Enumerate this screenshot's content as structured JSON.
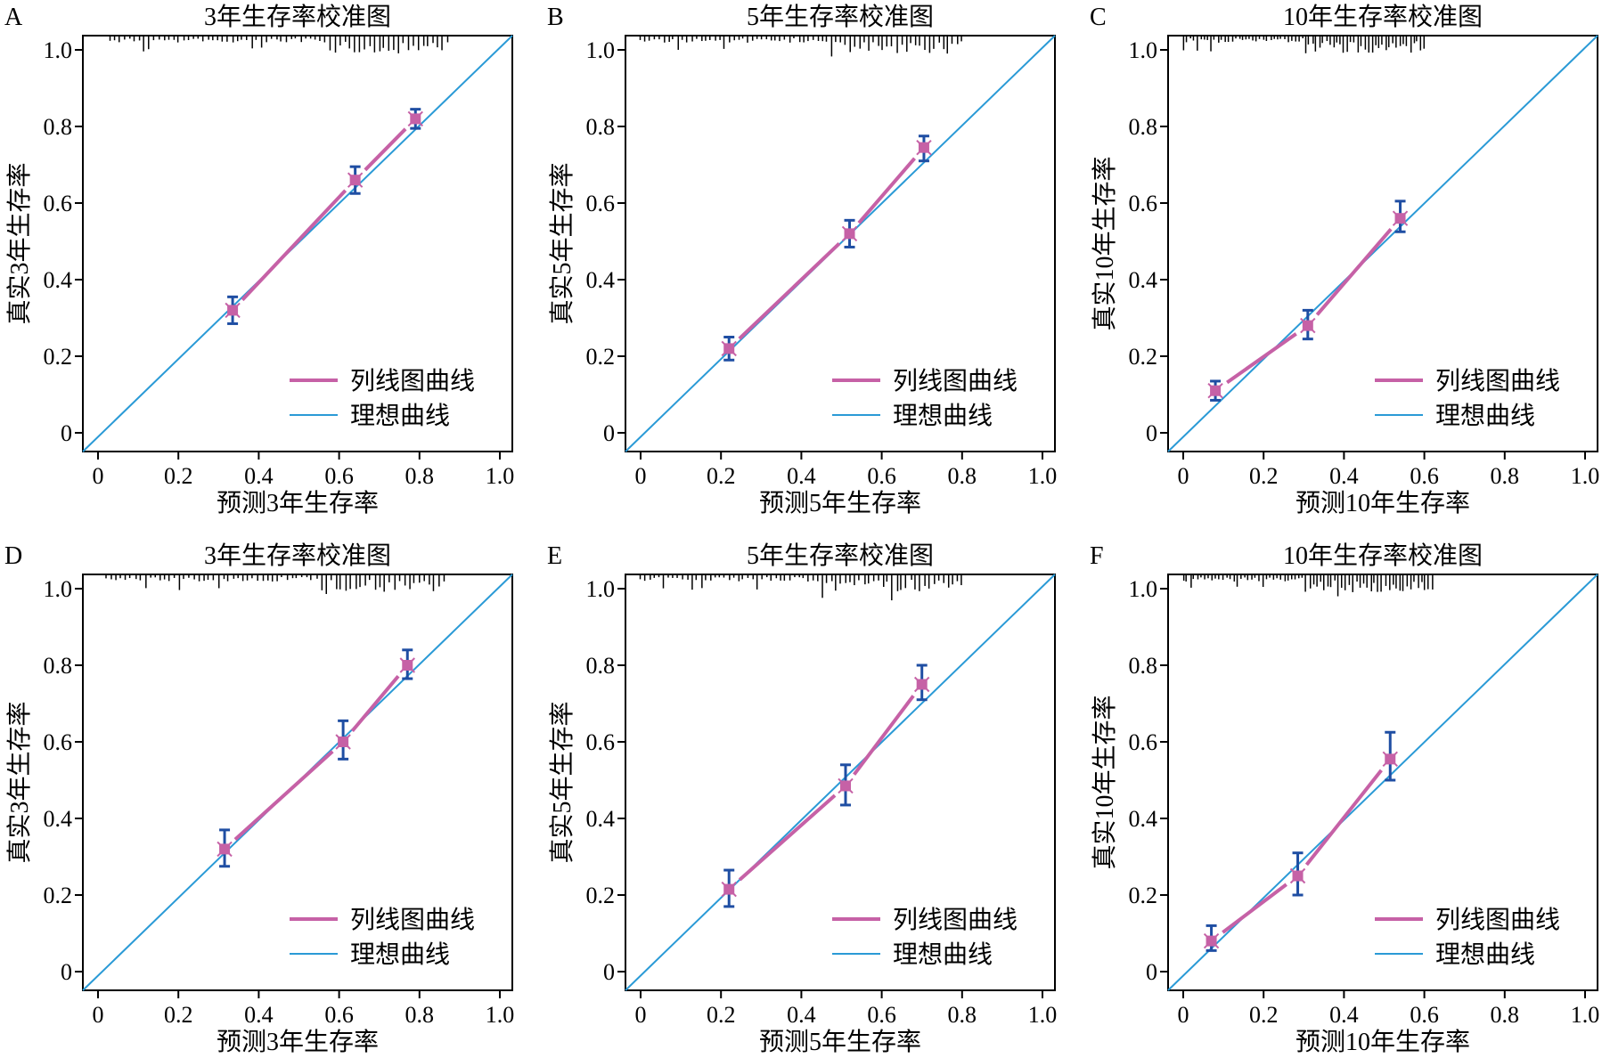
{
  "colors": {
    "ideal": "#2a9ad6",
    "nomogram": "#c661a6",
    "errorbar": "#1f4ea3",
    "axis": "#000000",
    "rug": "#000000"
  },
  "legend": {
    "nomogram_label": "列线图曲线",
    "ideal_label": "理想曲线"
  },
  "chart_data": [
    {
      "panel": "A",
      "type": "scatter",
      "title": "3年生存率校准图",
      "xlabel": "预测3年生存率",
      "ylabel": "真实3年生存率",
      "xlim": [
        0,
        1
      ],
      "ylim": [
        0,
        1
      ],
      "xticks": [
        "0",
        "0.2",
        "0.4",
        "0.6",
        "0.8",
        "1.0"
      ],
      "yticks": [
        "0",
        "0.2",
        "0.4",
        "0.6",
        "0.8",
        "1.0"
      ],
      "points": [
        {
          "x": 0.335,
          "y": 0.32,
          "lo": 0.285,
          "hi": 0.355
        },
        {
          "x": 0.64,
          "y": 0.66,
          "lo": 0.625,
          "hi": 0.695
        },
        {
          "x": 0.79,
          "y": 0.82,
          "lo": 0.795,
          "hi": 0.845
        }
      ],
      "rug": {
        "start": 0.03,
        "end": 0.87,
        "dense_from": 0.55
      }
    },
    {
      "panel": "B",
      "type": "scatter",
      "title": "5年生存率校准图",
      "xlabel": "预测5年生存率",
      "ylabel": "真实5年生存率",
      "xlim": [
        0,
        1
      ],
      "ylim": [
        0,
        1
      ],
      "xticks": [
        "0",
        "0.2",
        "0.4",
        "0.6",
        "0.8",
        "1.0"
      ],
      "yticks": [
        "0",
        "0.2",
        "0.4",
        "0.6",
        "0.8",
        "1.0"
      ],
      "points": [
        {
          "x": 0.22,
          "y": 0.22,
          "lo": 0.19,
          "hi": 0.25
        },
        {
          "x": 0.52,
          "y": 0.52,
          "lo": 0.485,
          "hi": 0.555
        },
        {
          "x": 0.705,
          "y": 0.745,
          "lo": 0.71,
          "hi": 0.775
        }
      ],
      "rug": {
        "start": 0.0,
        "end": 0.8,
        "dense_from": 0.45
      }
    },
    {
      "panel": "C",
      "type": "scatter",
      "title": "10年生存率校准图",
      "xlabel": "预测10年生存率",
      "ylabel": "真实10年生存率",
      "xlim": [
        0,
        1
      ],
      "ylim": [
        0,
        1
      ],
      "xticks": [
        "0",
        "0.2",
        "0.4",
        "0.6",
        "0.8",
        "1.0"
      ],
      "yticks": [
        "0",
        "0.2",
        "0.4",
        "0.6",
        "0.8",
        "1.0"
      ],
      "points": [
        {
          "x": 0.08,
          "y": 0.11,
          "lo": 0.085,
          "hi": 0.135
        },
        {
          "x": 0.31,
          "y": 0.28,
          "lo": 0.245,
          "hi": 0.32
        },
        {
          "x": 0.54,
          "y": 0.56,
          "lo": 0.525,
          "hi": 0.605
        }
      ],
      "rug": {
        "start": 0.0,
        "end": 0.6,
        "dense_from": 0.3
      }
    },
    {
      "panel": "D",
      "type": "scatter",
      "title": "3年生存率校准图",
      "xlabel": "预测3年生存率",
      "ylabel": "真实3年生存率",
      "xlim": [
        0,
        1
      ],
      "ylim": [
        0,
        1
      ],
      "xticks": [
        "0",
        "0.2",
        "0.4",
        "0.6",
        "0.8",
        "1.0"
      ],
      "yticks": [
        "0",
        "0.2",
        "0.4",
        "0.6",
        "0.8",
        "1.0"
      ],
      "points": [
        {
          "x": 0.315,
          "y": 0.32,
          "lo": 0.275,
          "hi": 0.37
        },
        {
          "x": 0.61,
          "y": 0.6,
          "lo": 0.555,
          "hi": 0.655
        },
        {
          "x": 0.77,
          "y": 0.8,
          "lo": 0.765,
          "hi": 0.84
        }
      ],
      "rug": {
        "start": 0.02,
        "end": 0.86,
        "dense_from": 0.55
      }
    },
    {
      "panel": "E",
      "type": "scatter",
      "title": "5年生存率校准图",
      "xlabel": "预测5年生存率",
      "ylabel": "真实5年生存率",
      "xlim": [
        0,
        1
      ],
      "ylim": [
        0,
        1
      ],
      "xticks": [
        "0",
        "0.2",
        "0.4",
        "0.6",
        "0.8",
        "1.0"
      ],
      "yticks": [
        "0",
        "0.2",
        "0.4",
        "0.6",
        "0.8",
        "1.0"
      ],
      "points": [
        {
          "x": 0.22,
          "y": 0.215,
          "lo": 0.17,
          "hi": 0.265
        },
        {
          "x": 0.51,
          "y": 0.485,
          "lo": 0.435,
          "hi": 0.54
        },
        {
          "x": 0.7,
          "y": 0.75,
          "lo": 0.71,
          "hi": 0.8
        }
      ],
      "rug": {
        "start": 0.0,
        "end": 0.8,
        "dense_from": 0.45
      }
    },
    {
      "panel": "F",
      "type": "scatter",
      "title": "10年生存率校准图",
      "xlabel": "预测10年生存率",
      "ylabel": "真实10年生存率",
      "xlim": [
        0,
        1
      ],
      "ylim": [
        0,
        1
      ],
      "xticks": [
        "0",
        "0.2",
        "0.4",
        "0.6",
        "0.8",
        "1.0"
      ],
      "yticks": [
        "0",
        "0.2",
        "0.4",
        "0.6",
        "0.8",
        "1.0"
      ],
      "points": [
        {
          "x": 0.07,
          "y": 0.08,
          "lo": 0.055,
          "hi": 0.12
        },
        {
          "x": 0.285,
          "y": 0.25,
          "lo": 0.2,
          "hi": 0.31
        },
        {
          "x": 0.515,
          "y": 0.555,
          "lo": 0.5,
          "hi": 0.625
        }
      ],
      "rug": {
        "start": 0.0,
        "end": 0.62,
        "dense_from": 0.3
      }
    }
  ]
}
